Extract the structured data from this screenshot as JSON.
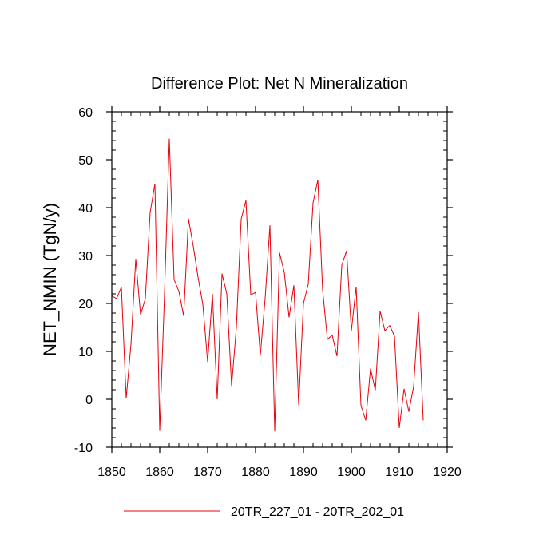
{
  "chart_data": {
    "type": "line",
    "title": "Difference Plot: Net N Mineralization",
    "xlabel": "",
    "ylabel": "NET_NMIN  (TgN/y)",
    "xlim": [
      1850,
      1920
    ],
    "ylim": [
      -10,
      60
    ],
    "xticks": [
      1850,
      1860,
      1870,
      1880,
      1890,
      1900,
      1910,
      1920
    ],
    "yticks": [
      -10,
      0,
      10,
      20,
      30,
      40,
      50,
      60
    ],
    "grid": false,
    "legend_position": "bottom",
    "series": [
      {
        "name": "20TR_227_01 - 20TR_202_01",
        "color": "#e8000b",
        "x": [
          1850,
          1851,
          1852,
          1853,
          1854,
          1855,
          1856,
          1857,
          1858,
          1859,
          1860,
          1861,
          1862,
          1863,
          1864,
          1865,
          1866,
          1867,
          1868,
          1869,
          1870,
          1871,
          1872,
          1873,
          1874,
          1875,
          1876,
          1877,
          1878,
          1879,
          1880,
          1881,
          1882,
          1883,
          1884,
          1885,
          1886,
          1887,
          1888,
          1889,
          1890,
          1891,
          1892,
          1893,
          1894,
          1895,
          1896,
          1897,
          1898,
          1899,
          1900,
          1901,
          1902,
          1903,
          1904,
          1905,
          1906,
          1907,
          1908,
          1909,
          1910,
          1911,
          1912,
          1913,
          1914,
          1915
        ],
        "values": [
          21.6,
          21.0,
          23.4,
          0.2,
          11.5,
          29.3,
          17.6,
          21.0,
          39.0,
          45.0,
          -6.6,
          22.0,
          54.4,
          25.0,
          22.5,
          17.4,
          37.7,
          32.0,
          25.5,
          19.8,
          7.8,
          22.0,
          0.0,
          26.2,
          22.0,
          2.8,
          15.0,
          37.6,
          41.5,
          21.8,
          22.3,
          9.2,
          21.0,
          36.3,
          -6.7,
          30.6,
          26.5,
          17.1,
          23.8,
          -1.2,
          20.0,
          24.0,
          41.0,
          45.8,
          22.8,
          12.5,
          13.4,
          9.0,
          28.0,
          31.0,
          14.3,
          23.5,
          -1.3,
          -4.4,
          6.4,
          1.9,
          18.4,
          14.3,
          15.4,
          13.2,
          -6.0,
          2.2,
          -2.6,
          2.7,
          18.2,
          -4.4
        ]
      }
    ]
  }
}
